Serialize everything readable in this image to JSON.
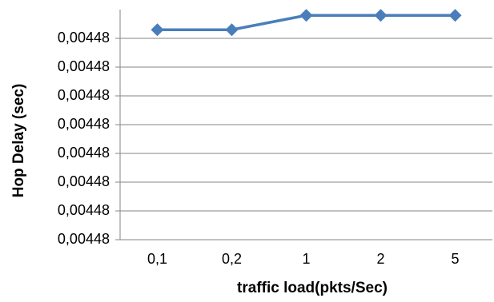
{
  "chart_data": {
    "type": "line",
    "x_label": "traffic load(pkts/Sec)",
    "y_label": "Hop Delay (sec)",
    "categories": [
      "0,1",
      "0,2",
      "1",
      "2",
      "5"
    ],
    "series": [
      {
        "name": "Hop Delay",
        "color": "#4a7ebb",
        "values": [
          0.00448073,
          0.00448073,
          0.00448078,
          0.00448078,
          0.00448078
        ]
      }
    ],
    "ylim": [
      0.00448,
      0.0044808
    ],
    "yticks": [
      {
        "value": 0.00448,
        "label": "0,00448"
      },
      {
        "value": 0.0044801,
        "label": "0,00448"
      },
      {
        "value": 0.0044802,
        "label": "0,00448"
      },
      {
        "value": 0.0044803,
        "label": "0,00448"
      },
      {
        "value": 0.0044804,
        "label": "0,00448"
      },
      {
        "value": 0.0044805,
        "label": "0,00448"
      },
      {
        "value": 0.0044806,
        "label": "0,00448"
      },
      {
        "value": 0.0044807,
        "label": "0,00448"
      }
    ],
    "grid": true
  }
}
